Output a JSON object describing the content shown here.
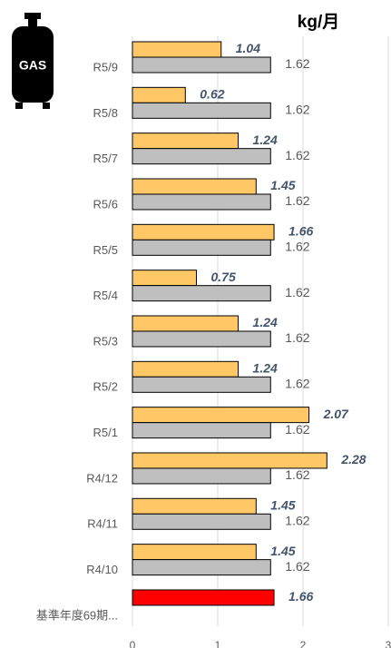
{
  "chart_data": {
    "type": "hbar",
    "title": "kg/月",
    "categories": [
      "R5/9",
      "R5/8",
      "R5/7",
      "R5/6",
      "R5/5",
      "R5/4",
      "R5/3",
      "R5/2",
      "R5/1",
      "R4/12",
      "R4/11",
      "R4/10",
      "基準年度69期..."
    ],
    "series": [
      {
        "colors": [
          "#ffc766",
          "#ffc766",
          "#ffc766",
          "#ffc766",
          "#ffc766",
          "#ffc766",
          "#ffc766",
          "#ffc766",
          "#ffc766",
          "#ffc766",
          "#ffc766",
          "#ffc766",
          "#ff0000"
        ],
        "values": [
          1.04,
          0.62,
          1.24,
          1.45,
          1.66,
          0.75,
          1.24,
          1.24,
          2.07,
          2.28,
          1.45,
          1.45,
          1.66
        ]
      },
      {
        "color": "#bfbfbf",
        "values": [
          1.62,
          1.62,
          1.62,
          1.62,
          1.62,
          1.62,
          1.62,
          1.62,
          1.62,
          1.62,
          1.62,
          1.62,
          null
        ]
      }
    ],
    "xlim": [
      0,
      3
    ],
    "xticks": [
      0,
      1,
      2,
      3
    ],
    "grid": true
  }
}
